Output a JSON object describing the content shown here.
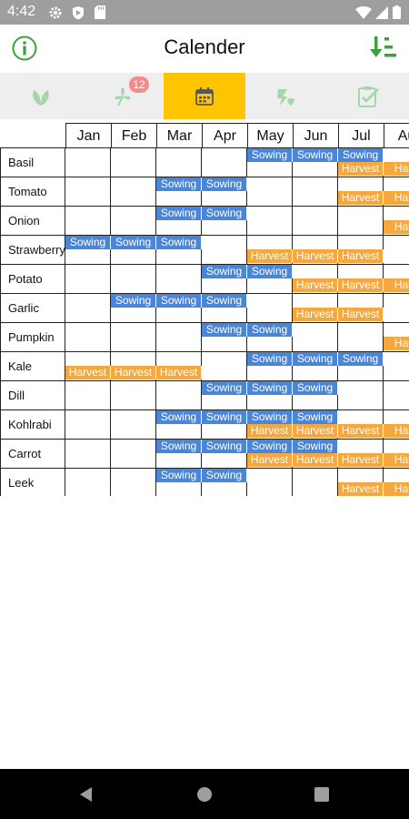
{
  "status_bar": {
    "time": "4:42"
  },
  "app_bar": {
    "title": "Calender"
  },
  "tabs": [
    {
      "icon": "leaf-icon",
      "active": false
    },
    {
      "icon": "sprout-icon",
      "active": false,
      "badge": "12"
    },
    {
      "icon": "calendar-icon",
      "active": true
    },
    {
      "icon": "weather-icon",
      "active": false
    },
    {
      "icon": "checklist-icon",
      "active": false
    }
  ],
  "calendar": {
    "months": [
      "Jan",
      "Feb",
      "Mar",
      "Apr",
      "May",
      "Jun",
      "Jul",
      "Au"
    ],
    "sowing_label": "Sowing",
    "harvest_label": "Harvest",
    "harvest_truncated_label": "Harv",
    "colors": {
      "sowing": "#4a86d8",
      "harvest": "#f5a840"
    },
    "plants": [
      {
        "name": "Basil",
        "sowing": [
          5,
          6,
          7
        ],
        "harvest": [
          7,
          8
        ]
      },
      {
        "name": "Tomato",
        "sowing": [
          3,
          4
        ],
        "harvest": [
          7,
          8
        ]
      },
      {
        "name": "Onion",
        "sowing": [
          3,
          4
        ],
        "harvest": [
          8
        ]
      },
      {
        "name": "Strawberry",
        "sowing": [
          1,
          2,
          3
        ],
        "harvest": [
          5,
          6,
          7
        ]
      },
      {
        "name": "Potato",
        "sowing": [
          4,
          5
        ],
        "harvest": [
          6,
          7,
          8
        ]
      },
      {
        "name": "Garlic",
        "sowing": [
          2,
          3,
          4
        ],
        "harvest": [
          6,
          7
        ]
      },
      {
        "name": "Pumpkin",
        "sowing": [
          4,
          5
        ],
        "harvest": [
          8
        ]
      },
      {
        "name": "Kale",
        "sowing": [
          5,
          6,
          7
        ],
        "harvest": [
          1,
          2,
          3
        ]
      },
      {
        "name": "Dill",
        "sowing": [
          4,
          5,
          6
        ],
        "harvest": []
      },
      {
        "name": "Kohlrabi",
        "sowing": [
          3,
          4,
          5,
          6
        ],
        "harvest": [
          5,
          6,
          7,
          8
        ]
      },
      {
        "name": "Carrot",
        "sowing": [
          3,
          4,
          5,
          6
        ],
        "harvest": [
          5,
          6,
          7,
          8
        ]
      },
      {
        "name": "Leek",
        "sowing": [
          3,
          4
        ],
        "harvest": [
          7,
          8
        ]
      }
    ]
  }
}
